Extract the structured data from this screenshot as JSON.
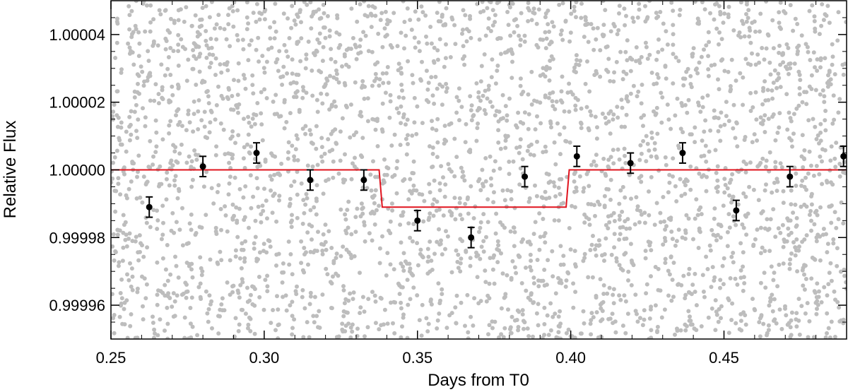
{
  "chart_data": {
    "type": "scatter",
    "title": "",
    "xlabel": "Days from T0",
    "ylabel": "Relative Flux",
    "xlim": [
      0.25,
      0.49
    ],
    "ylim": [
      0.99995,
      1.00005
    ],
    "x_ticks": [
      0.25,
      0.3,
      0.35,
      0.4,
      0.45
    ],
    "x_tick_labels": [
      "0.25",
      "0.30",
      "0.35",
      "0.40",
      "0.45"
    ],
    "y_ticks": [
      0.99996,
      0.99998,
      1.0,
      1.00002,
      1.00004
    ],
    "y_tick_labels": [
      "0.99996",
      "0.99998",
      "1.00000",
      "1.00002",
      "1.00004"
    ],
    "grid": false,
    "legend": "none",
    "colors": {
      "raw": "#bdbdbd",
      "binned": "#000000",
      "model": "#e0141e"
    },
    "series": [
      {
        "kind": "raw-scatter",
        "description": "unbinned photometry (dense, spanning full axis range)",
        "count": 3200
      },
      {
        "kind": "binned-errorbar",
        "x": [
          0.2625,
          0.28,
          0.2975,
          0.315,
          0.3325,
          0.35,
          0.3675,
          0.385,
          0.402,
          0.4195,
          0.4365,
          0.454,
          0.4715,
          0.489
        ],
        "y": [
          0.999989,
          1.000001,
          1.000005,
          0.999997,
          0.999997,
          0.999985,
          0.99998,
          0.999998,
          1.000004,
          1.000002,
          1.000005,
          0.999988,
          0.999998,
          1.000004
        ],
        "yerr": 3e-06
      },
      {
        "kind": "model-line",
        "x": [
          0.25,
          0.3375,
          0.3385,
          0.3985,
          0.3995,
          0.49
        ],
        "y": [
          1.0,
          1.0,
          0.999989,
          0.999989,
          1.0,
          1.0
        ]
      }
    ]
  }
}
